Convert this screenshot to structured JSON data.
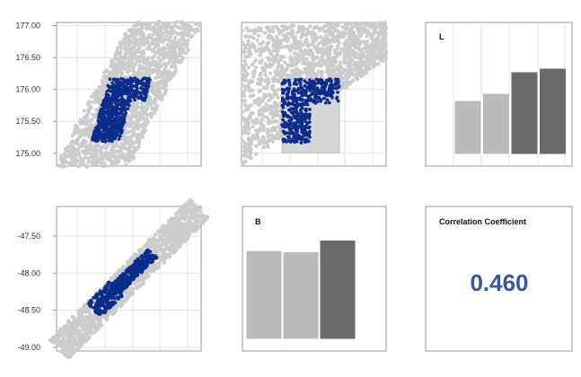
{
  "colors": {
    "background_points": "#cccccc",
    "selected_points": "#0c2c8c",
    "bar_light": "#bbbbbb",
    "bar_dark": "#6a6a6a",
    "frame": "#999999",
    "grid": "#e3e3e3",
    "correlation_text": "#3b54a3"
  },
  "chart_data": [
    {
      "type": "scatter",
      "panel": "row1-col1",
      "yticks": [
        "177.00",
        "176.50",
        "176.00",
        "175.50",
        "175.00"
      ],
      "ylim": [
        174.8,
        177.05
      ],
      "grid": true
    },
    {
      "type": "scatter",
      "panel": "row1-col2",
      "grid": true
    },
    {
      "type": "bar",
      "panel": "row1-col3",
      "title": "L",
      "values": [
        0.6,
        0.68,
        0.92,
        0.96
      ],
      "emphasis": [
        "light",
        "light",
        "dark",
        "dark"
      ],
      "ylim": [
        0,
        1
      ]
    },
    {
      "type": "scatter",
      "panel": "row2-col1",
      "yticks": [
        "-47.50",
        "-48.00",
        "-48.50",
        "-49.00"
      ],
      "ylim": [
        -49.05,
        -47.1
      ],
      "grid": true
    },
    {
      "type": "bar",
      "panel": "row2-col2",
      "title": "B",
      "values": [
        0.76,
        0.75,
        0.85
      ],
      "emphasis": [
        "light",
        "light",
        "dark"
      ],
      "ylim": [
        0,
        1
      ]
    },
    {
      "type": "table",
      "panel": "row2-col3",
      "title": "Correlation Coefficient",
      "value": "0.460"
    }
  ]
}
